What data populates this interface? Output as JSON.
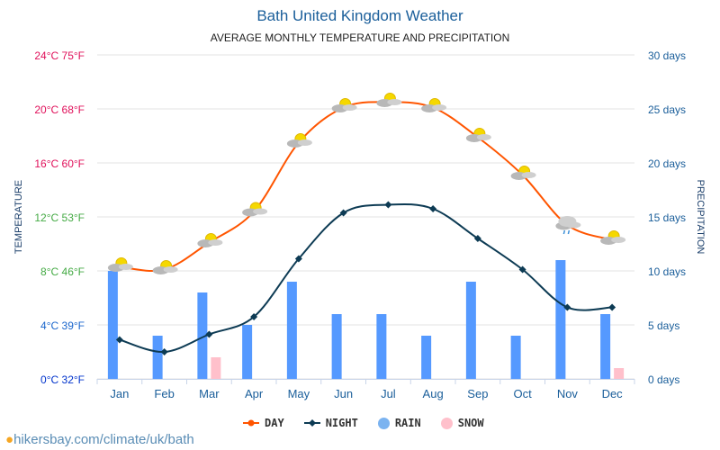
{
  "title": "Bath United Kingdom Weather",
  "subtitle": "AVERAGE MONTHLY TEMPERATURE AND PRECIPITATION",
  "footer": "hikersbay.com/climate/uk/bath",
  "chart_data": {
    "type": "line+bar",
    "categories": [
      "Jan",
      "Feb",
      "Mar",
      "Apr",
      "May",
      "Jun",
      "Jul",
      "Aug",
      "Sep",
      "Oct",
      "Nov",
      "Dec"
    ],
    "ylabel_left": "TEMPERATURE",
    "ylabel_right": "PRECIPITATION",
    "ylim_left": [
      0,
      24
    ],
    "ylim_right": [
      0,
      30
    ],
    "left_ticks": [
      {
        "v": 0,
        "label": "0°C 32°F"
      },
      {
        "v": 4,
        "label": "4°C 39°F"
      },
      {
        "v": 8,
        "label": "8°C 46°F"
      },
      {
        "v": 12,
        "label": "12°C 53°F"
      },
      {
        "v": 16,
        "label": "16°C 60°F"
      },
      {
        "v": 20,
        "label": "20°C 68°F"
      },
      {
        "v": 24,
        "label": "24°C 75°F"
      }
    ],
    "right_ticks": [
      {
        "v": 0,
        "label": "0 days"
      },
      {
        "v": 5,
        "label": "5 days"
      },
      {
        "v": 10,
        "label": "10 days"
      },
      {
        "v": 15,
        "label": "15 days"
      },
      {
        "v": 20,
        "label": "20 days"
      },
      {
        "v": 25,
        "label": "25 days"
      },
      {
        "v": 30,
        "label": "30 days"
      }
    ],
    "grid": true,
    "legend_position": "bottom",
    "series": [
      {
        "name": "DAY",
        "type": "line",
        "axis": "left",
        "color": "#ff5500",
        "values": [
          8.3,
          8.1,
          10.1,
          12.4,
          17.5,
          20.1,
          20.5,
          20.1,
          17.9,
          15.1,
          11.4,
          10.3
        ]
      },
      {
        "name": "NIGHT",
        "type": "line",
        "axis": "left",
        "color": "#0d3b54",
        "values": [
          2.9,
          2.0,
          3.3,
          4.6,
          8.9,
          12.3,
          12.9,
          12.6,
          10.4,
          8.1,
          5.3,
          5.3
        ]
      },
      {
        "name": "RAIN",
        "type": "bar",
        "axis": "right",
        "color": "#5599ff",
        "values": [
          10,
          4,
          8,
          5,
          9,
          6,
          6,
          4,
          9,
          4,
          11,
          6
        ]
      },
      {
        "name": "SNOW",
        "type": "bar",
        "axis": "right",
        "color": "#ffc0cb",
        "values": [
          0,
          0,
          2,
          0,
          0,
          0,
          0,
          0,
          0,
          0,
          0,
          1
        ]
      }
    ],
    "weather_icons": [
      "partly-cloudy",
      "partly-cloudy",
      "partly-cloudy",
      "partly-cloudy",
      "partly-cloudy",
      "partly-cloudy",
      "partly-cloudy",
      "partly-cloudy",
      "partly-cloudy",
      "partly-cloudy",
      "cloud-rain",
      "partly-cloudy"
    ]
  }
}
